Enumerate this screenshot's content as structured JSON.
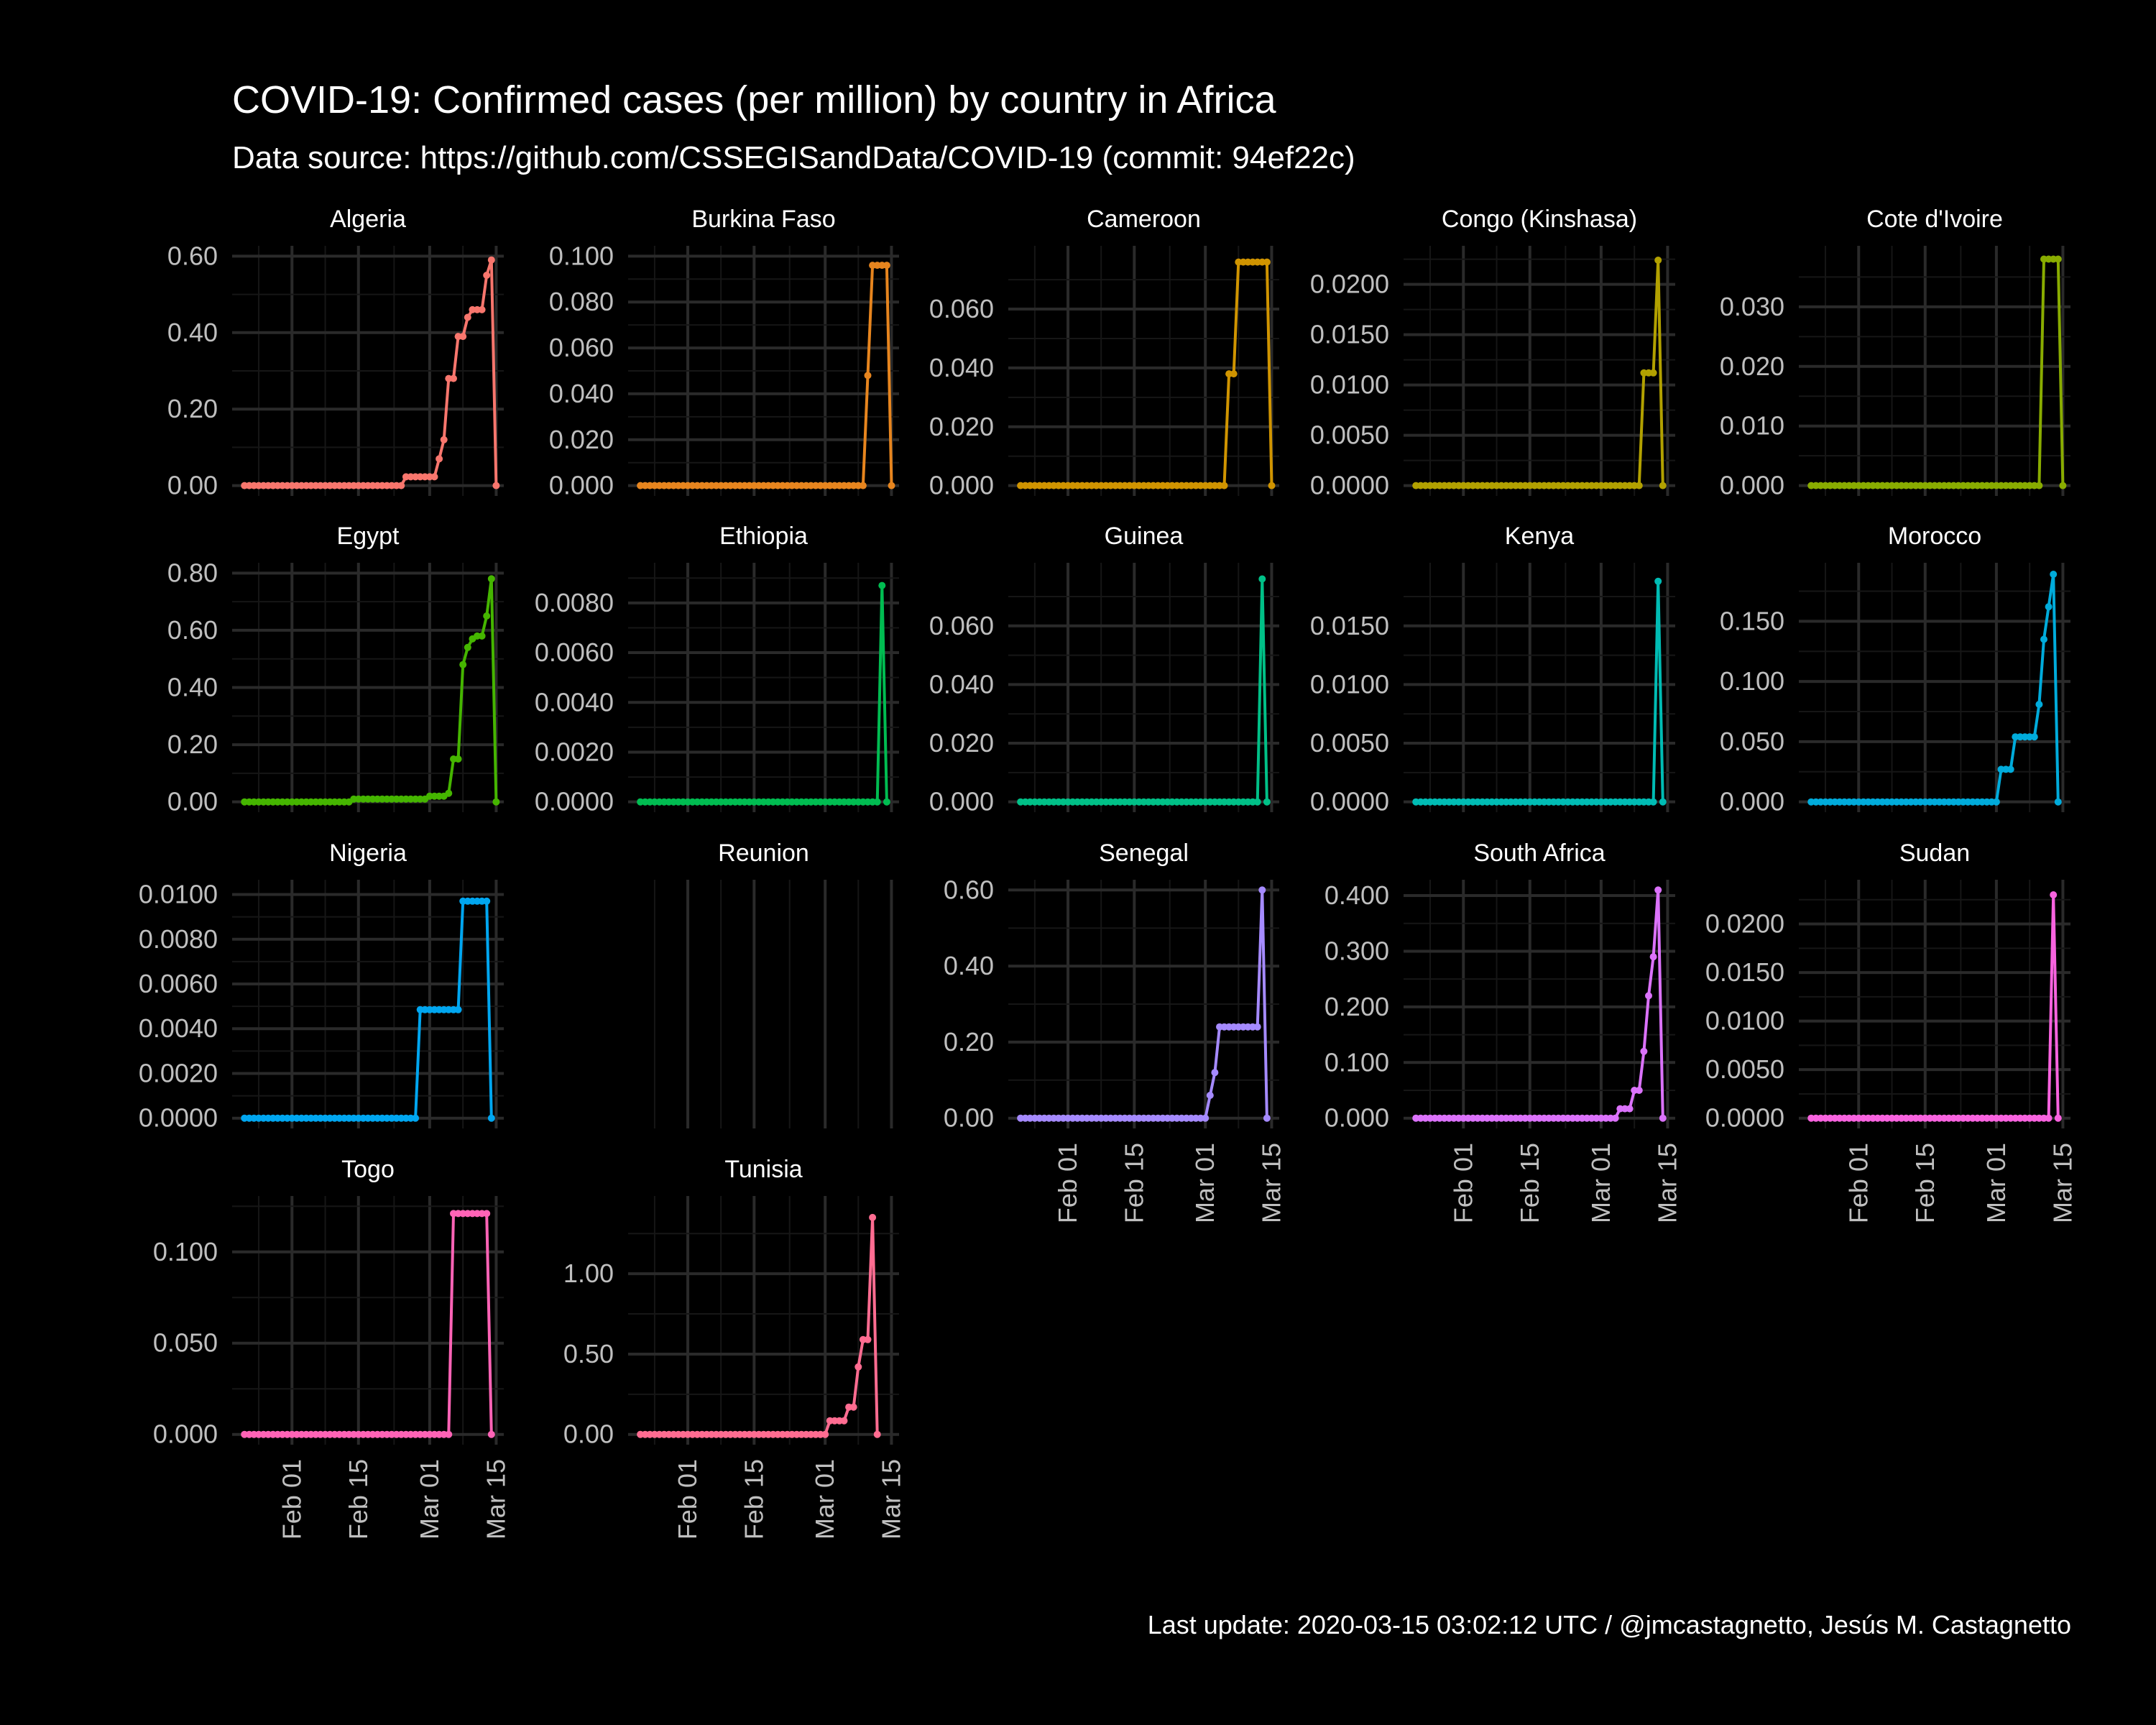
{
  "title": "COVID-19: Confirmed cases (per million)  by country in Africa",
  "subtitle": "Data source: https://github.com/CSSEGISandData/COVID-19 (commit: 94ef22c)",
  "caption": "Last update:  2020-03-15 03:02:12 UTC / @jmcastagnetto, Jesús M. Castagnetto",
  "colors": {
    "background": "#000000",
    "grid_major": "#2a2a2a",
    "grid_minor": "#161616",
    "axis_text": "#bfbfbf",
    "title_text": "#ffffff"
  },
  "chart_data": {
    "type": "line",
    "layout": "faceted small multiples, 5 columns, independent y axes, shared date x axis",
    "x_axis": {
      "type": "date",
      "range": [
        "2020-01-22",
        "2020-03-14"
      ],
      "ticks": [
        "2020-02-01",
        "2020-02-15",
        "2020-03-01",
        "2020-03-15"
      ],
      "tick_labels": [
        "Feb 01",
        "Feb 15",
        "Mar 01",
        "Mar 15"
      ]
    },
    "grid": true,
    "legend": "none",
    "panels": [
      {
        "name": "Algeria",
        "color": "#F8766D",
        "ylim": [
          0,
          0.6
        ],
        "y_ticks": [
          0,
          0.2,
          0.4,
          0.6
        ],
        "y_tick_labels": [
          "0.00",
          "0.20",
          "0.40",
          "0.60"
        ],
        "x_labels_shown": false,
        "points": [
          [
            "2020-01-22",
            0
          ],
          [
            "2020-02-24",
            0
          ],
          [
            "2020-02-25",
            0.023
          ],
          [
            "2020-03-02",
            0.023
          ],
          [
            "2020-03-03",
            0.07
          ],
          [
            "2020-03-04",
            0.12
          ],
          [
            "2020-03-05",
            0.28
          ],
          [
            "2020-03-06",
            0.28
          ],
          [
            "2020-03-07",
            0.39
          ],
          [
            "2020-03-08",
            0.39
          ],
          [
            "2020-03-09",
            0.44
          ],
          [
            "2020-03-10",
            0.46
          ],
          [
            "2020-03-11",
            0.46
          ],
          [
            "2020-03-12",
            0.46
          ],
          [
            "2020-03-13",
            0.55
          ],
          [
            "2020-03-14",
            0.59
          ],
          [
            "2020-03-15",
            0
          ]
        ]
      },
      {
        "name": "Burkina Faso",
        "color": "#E7851E",
        "ylim": [
          0,
          0.1
        ],
        "y_ticks": [
          0,
          0.02,
          0.04,
          0.06,
          0.08,
          0.1
        ],
        "y_tick_labels": [
          "0.000",
          "0.020",
          "0.040",
          "0.060",
          "0.080",
          "0.100"
        ],
        "x_labels_shown": false,
        "points": [
          [
            "2020-01-22",
            0
          ],
          [
            "2020-03-09",
            0
          ],
          [
            "2020-03-10",
            0.048
          ],
          [
            "2020-03-11",
            0.096
          ],
          [
            "2020-03-12",
            0.096
          ],
          [
            "2020-03-13",
            0.096
          ],
          [
            "2020-03-14",
            0.096
          ],
          [
            "2020-03-15",
            0
          ]
        ]
      },
      {
        "name": "Cameroon",
        "color": "#D09400",
        "ylim": [
          0,
          0.078
        ],
        "y_ticks": [
          0,
          0.02,
          0.04,
          0.06
        ],
        "y_tick_labels": [
          "0.000",
          "0.020",
          "0.040",
          "0.060"
        ],
        "x_labels_shown": false,
        "points": [
          [
            "2020-01-22",
            0
          ],
          [
            "2020-03-05",
            0
          ],
          [
            "2020-03-06",
            0.038
          ],
          [
            "2020-03-07",
            0.038
          ],
          [
            "2020-03-08",
            0.076
          ],
          [
            "2020-03-09",
            0.076
          ],
          [
            "2020-03-10",
            0.076
          ],
          [
            "2020-03-11",
            0.076
          ],
          [
            "2020-03-12",
            0.076
          ],
          [
            "2020-03-13",
            0.076
          ],
          [
            "2020-03-14",
            0.076
          ],
          [
            "2020-03-15",
            0
          ]
        ]
      },
      {
        "name": "Congo (Kinshasa)",
        "color": "#B2A100",
        "ylim": [
          0,
          0.0228
        ],
        "y_ticks": [
          0,
          0.005,
          0.01,
          0.015,
          0.02
        ],
        "y_tick_labels": [
          "0.0000",
          "0.0050",
          "0.0100",
          "0.0150",
          "0.0200"
        ],
        "x_labels_shown": false,
        "points": [
          [
            "2020-01-22",
            0
          ],
          [
            "2020-03-09",
            0
          ],
          [
            "2020-03-10",
            0.0112
          ],
          [
            "2020-03-11",
            0.0112
          ],
          [
            "2020-03-12",
            0.0112
          ],
          [
            "2020-03-13",
            0.0224
          ],
          [
            "2020-03-14",
            0
          ]
        ]
      },
      {
        "name": "Cote d'Ivoire",
        "color": "#89AC00",
        "ylim": [
          0,
          0.0385
        ],
        "y_ticks": [
          0,
          0.01,
          0.02,
          0.03
        ],
        "y_tick_labels": [
          "0.000",
          "0.010",
          "0.020",
          "0.030"
        ],
        "x_labels_shown": false,
        "points": [
          [
            "2020-01-22",
            0
          ],
          [
            "2020-03-10",
            0
          ],
          [
            "2020-03-11",
            0.038
          ],
          [
            "2020-03-12",
            0.038
          ],
          [
            "2020-03-13",
            0.038
          ],
          [
            "2020-03-14",
            0.038
          ],
          [
            "2020-03-15",
            0
          ]
        ]
      },
      {
        "name": "Egypt",
        "color": "#45B500",
        "ylim": [
          0,
          0.8
        ],
        "y_ticks": [
          0,
          0.2,
          0.4,
          0.6,
          0.8
        ],
        "y_tick_labels": [
          "0.00",
          "0.20",
          "0.40",
          "0.60",
          "0.80"
        ],
        "x_labels_shown": false,
        "points": [
          [
            "2020-01-22",
            0
          ],
          [
            "2020-02-13",
            0
          ],
          [
            "2020-02-14",
            0.01
          ],
          [
            "2020-02-29",
            0.01
          ],
          [
            "2020-03-01",
            0.02
          ],
          [
            "2020-03-02",
            0.02
          ],
          [
            "2020-03-03",
            0.02
          ],
          [
            "2020-03-04",
            0.02
          ],
          [
            "2020-03-05",
            0.03
          ],
          [
            "2020-03-06",
            0.15
          ],
          [
            "2020-03-07",
            0.15
          ],
          [
            "2020-03-08",
            0.48
          ],
          [
            "2020-03-09",
            0.54
          ],
          [
            "2020-03-10",
            0.57
          ],
          [
            "2020-03-11",
            0.58
          ],
          [
            "2020-03-12",
            0.58
          ],
          [
            "2020-03-13",
            0.65
          ],
          [
            "2020-03-14",
            0.78
          ],
          [
            "2020-03-15",
            0
          ]
        ]
      },
      {
        "name": "Ethiopia",
        "color": "#00BC51",
        "ylim": [
          0,
          0.0092
        ],
        "y_ticks": [
          0,
          0.002,
          0.004,
          0.006,
          0.008
        ],
        "y_tick_labels": [
          "0.0000",
          "0.0020",
          "0.0040",
          "0.0060",
          "0.0080"
        ],
        "x_labels_shown": false,
        "points": [
          [
            "2020-01-22",
            0
          ],
          [
            "2020-03-12",
            0
          ],
          [
            "2020-03-13",
            0.0087
          ],
          [
            "2020-03-14",
            0
          ]
        ]
      },
      {
        "name": "Guinea",
        "color": "#00C087",
        "ylim": [
          0,
          0.078
        ],
        "y_ticks": [
          0,
          0.02,
          0.04,
          0.06
        ],
        "y_tick_labels": [
          "0.000",
          "0.020",
          "0.040",
          "0.060"
        ],
        "x_labels_shown": false,
        "points": [
          [
            "2020-01-22",
            0
          ],
          [
            "2020-03-12",
            0
          ],
          [
            "2020-03-13",
            0.076
          ],
          [
            "2020-03-14",
            0
          ]
        ]
      },
      {
        "name": "Kenya",
        "color": "#00BCB4",
        "ylim": [
          0,
          0.0195
        ],
        "y_ticks": [
          0,
          0.005,
          0.01,
          0.015
        ],
        "y_tick_labels": [
          "0.0000",
          "0.0050",
          "0.0100",
          "0.0150"
        ],
        "x_labels_shown": false,
        "points": [
          [
            "2020-01-22",
            0
          ],
          [
            "2020-03-12",
            0
          ],
          [
            "2020-03-13",
            0.0188
          ],
          [
            "2020-03-14",
            0
          ]
        ]
      },
      {
        "name": "Morocco",
        "color": "#00ABDB",
        "ylim": [
          0,
          0.19
        ],
        "y_ticks": [
          0,
          0.05,
          0.1,
          0.15
        ],
        "y_tick_labels": [
          "0.000",
          "0.050",
          "0.100",
          "0.150"
        ],
        "x_labels_shown": false,
        "points": [
          [
            "2020-01-22",
            0
          ],
          [
            "2020-03-01",
            0
          ],
          [
            "2020-03-02",
            0.027
          ],
          [
            "2020-03-03",
            0.027
          ],
          [
            "2020-03-04",
            0.027
          ],
          [
            "2020-03-05",
            0.054
          ],
          [
            "2020-03-06",
            0.054
          ],
          [
            "2020-03-07",
            0.054
          ],
          [
            "2020-03-08",
            0.054
          ],
          [
            "2020-03-09",
            0.054
          ],
          [
            "2020-03-10",
            0.081
          ],
          [
            "2020-03-11",
            0.135
          ],
          [
            "2020-03-12",
            0.162
          ],
          [
            "2020-03-13",
            0.189
          ],
          [
            "2020-03-14",
            0
          ]
        ]
      },
      {
        "name": "Nigeria",
        "color": "#00A6F0",
        "ylim": [
          0,
          0.0102
        ],
        "y_ticks": [
          0,
          0.002,
          0.004,
          0.006,
          0.008,
          0.01
        ],
        "y_tick_labels": [
          "0.0000",
          "0.0020",
          "0.0040",
          "0.0060",
          "0.0080",
          "0.0100"
        ],
        "x_labels_shown": false,
        "points": [
          [
            "2020-01-22",
            0
          ],
          [
            "2020-02-27",
            0
          ],
          [
            "2020-02-28",
            0.00485
          ],
          [
            "2020-03-07",
            0.00485
          ],
          [
            "2020-03-08",
            0.0097
          ],
          [
            "2020-03-09",
            0.0097
          ],
          [
            "2020-03-10",
            0.0097
          ],
          [
            "2020-03-11",
            0.0097
          ],
          [
            "2020-03-12",
            0.0097
          ],
          [
            "2020-03-13",
            0.0097
          ],
          [
            "2020-03-14",
            0
          ]
        ]
      },
      {
        "name": "Reunion",
        "color": "#7F96FF",
        "ylim": null,
        "y_ticks": [],
        "y_tick_labels": [],
        "x_labels_shown": false,
        "points": []
      },
      {
        "name": "Senegal",
        "color": "#A58AFF",
        "ylim": [
          0,
          0.6
        ],
        "y_ticks": [
          0,
          0.2,
          0.4,
          0.6
        ],
        "y_tick_labels": [
          "0.00",
          "0.20",
          "0.40",
          "0.60"
        ],
        "x_labels_shown": true,
        "points": [
          [
            "2020-01-22",
            0
          ],
          [
            "2020-02-29",
            0
          ],
          [
            "2020-03-01",
            0
          ],
          [
            "2020-03-02",
            0.06
          ],
          [
            "2020-03-03",
            0.12
          ],
          [
            "2020-03-04",
            0.24
          ],
          [
            "2020-03-05",
            0.24
          ],
          [
            "2020-03-06",
            0.24
          ],
          [
            "2020-03-07",
            0.24
          ],
          [
            "2020-03-08",
            0.24
          ],
          [
            "2020-03-09",
            0.24
          ],
          [
            "2020-03-10",
            0.24
          ],
          [
            "2020-03-11",
            0.24
          ],
          [
            "2020-03-12",
            0.24
          ],
          [
            "2020-03-13",
            0.6
          ],
          [
            "2020-03-14",
            0
          ]
        ]
      },
      {
        "name": "South Africa",
        "color": "#DB72FB",
        "ylim": [
          0,
          0.41
        ],
        "y_ticks": [
          0,
          0.1,
          0.2,
          0.3,
          0.4
        ],
        "y_tick_labels": [
          "0.000",
          "0.100",
          "0.200",
          "0.300",
          "0.400"
        ],
        "x_labels_shown": true,
        "points": [
          [
            "2020-01-22",
            0
          ],
          [
            "2020-03-04",
            0
          ],
          [
            "2020-03-05",
            0.017
          ],
          [
            "2020-03-06",
            0.017
          ],
          [
            "2020-03-07",
            0.017
          ],
          [
            "2020-03-08",
            0.05
          ],
          [
            "2020-03-09",
            0.05
          ],
          [
            "2020-03-10",
            0.12
          ],
          [
            "2020-03-11",
            0.22
          ],
          [
            "2020-03-12",
            0.29
          ],
          [
            "2020-03-13",
            0.41
          ],
          [
            "2020-03-14",
            0
          ]
        ]
      },
      {
        "name": "Sudan",
        "color": "#F863DF",
        "ylim": [
          0,
          0.0235
        ],
        "y_ticks": [
          0,
          0.005,
          0.01,
          0.015,
          0.02
        ],
        "y_tick_labels": [
          "0.0000",
          "0.0050",
          "0.0100",
          "0.0150",
          "0.0200"
        ],
        "x_labels_shown": true,
        "points": [
          [
            "2020-01-22",
            0
          ],
          [
            "2020-03-12",
            0
          ],
          [
            "2020-03-13",
            0.023
          ],
          [
            "2020-03-14",
            0
          ]
        ]
      },
      {
        "name": "Togo",
        "color": "#FF63B6",
        "ylim": [
          0,
          0.125
        ],
        "y_ticks": [
          0,
          0.05,
          0.1
        ],
        "y_tick_labels": [
          "0.000",
          "0.050",
          "0.100"
        ],
        "x_labels_shown": true,
        "points": [
          [
            "2020-01-22",
            0
          ],
          [
            "2020-03-05",
            0
          ],
          [
            "2020-03-06",
            0.121
          ],
          [
            "2020-03-07",
            0.121
          ],
          [
            "2020-03-08",
            0.121
          ],
          [
            "2020-03-09",
            0.121
          ],
          [
            "2020-03-10",
            0.121
          ],
          [
            "2020-03-11",
            0.121
          ],
          [
            "2020-03-12",
            0.121
          ],
          [
            "2020-03-13",
            0.121
          ],
          [
            "2020-03-14",
            0
          ]
        ]
      },
      {
        "name": "Tunisia",
        "color": "#FF6C91",
        "ylim": [
          0,
          1.42
        ],
        "y_ticks": [
          0,
          0.5,
          1.0
        ],
        "y_tick_labels": [
          "0.00",
          "0.50",
          "1.00"
        ],
        "x_labels_shown": true,
        "points": [
          [
            "2020-01-22",
            0
          ],
          [
            "2020-03-01",
            0
          ],
          [
            "2020-03-02",
            0.085
          ],
          [
            "2020-03-03",
            0.085
          ],
          [
            "2020-03-04",
            0.085
          ],
          [
            "2020-03-05",
            0.085
          ],
          [
            "2020-03-06",
            0.17
          ],
          [
            "2020-03-07",
            0.17
          ],
          [
            "2020-03-08",
            0.42
          ],
          [
            "2020-03-09",
            0.59
          ],
          [
            "2020-03-10",
            0.59
          ],
          [
            "2020-03-11",
            1.35
          ],
          [
            "2020-03-12",
            0
          ]
        ]
      }
    ]
  }
}
